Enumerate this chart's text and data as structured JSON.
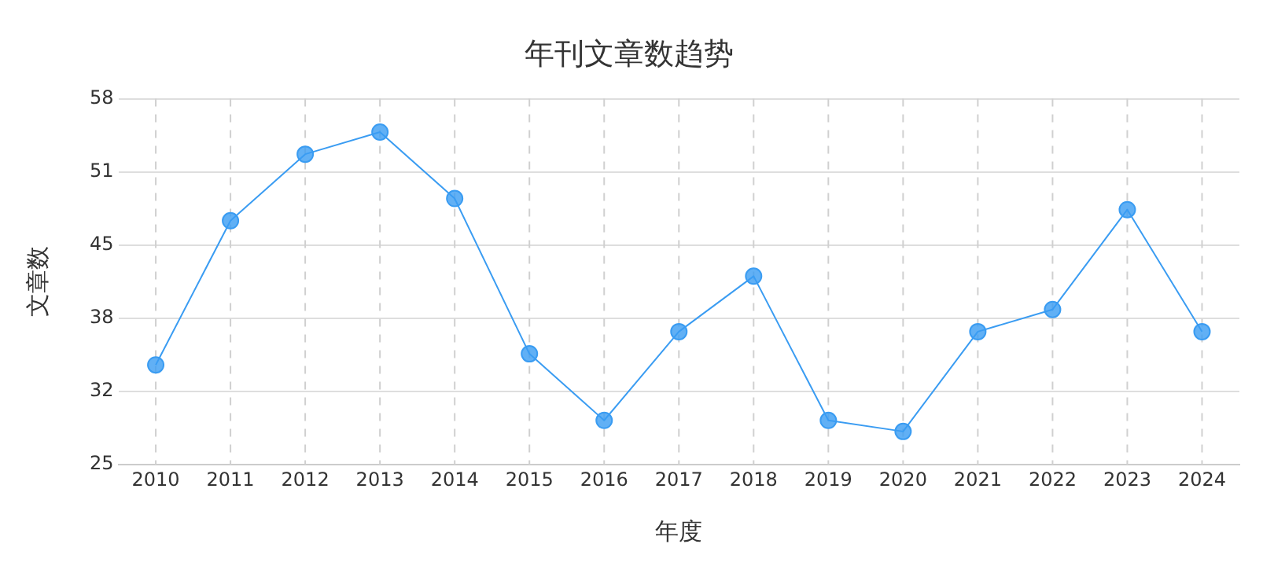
{
  "chart_data": {
    "type": "line",
    "title": "年刊文章数趋势",
    "xlabel": "年度",
    "ylabel": "文章数",
    "categories": [
      "2010",
      "2011",
      "2012",
      "2013",
      "2014",
      "2015",
      "2016",
      "2017",
      "2018",
      "2019",
      "2020",
      "2021",
      "2022",
      "2023",
      "2024"
    ],
    "series": [
      {
        "color": "#3a9cf2",
        "values": [
          34,
          47,
          53,
          55,
          49,
          35,
          29,
          37,
          42,
          29,
          28,
          37,
          39,
          48,
          37
        ]
      }
    ],
    "ylim": [
      25,
      58
    ],
    "yticks": [
      25,
      {
        "value": 31.6,
        "label": "32"
      },
      {
        "value": 38.2,
        "label": "38"
      },
      {
        "value": 44.8,
        "label": "45"
      },
      {
        "value": 51.4,
        "label": "51"
      },
      58
    ],
    "grid": true,
    "marker": "circle",
    "line_style": "solid"
  }
}
